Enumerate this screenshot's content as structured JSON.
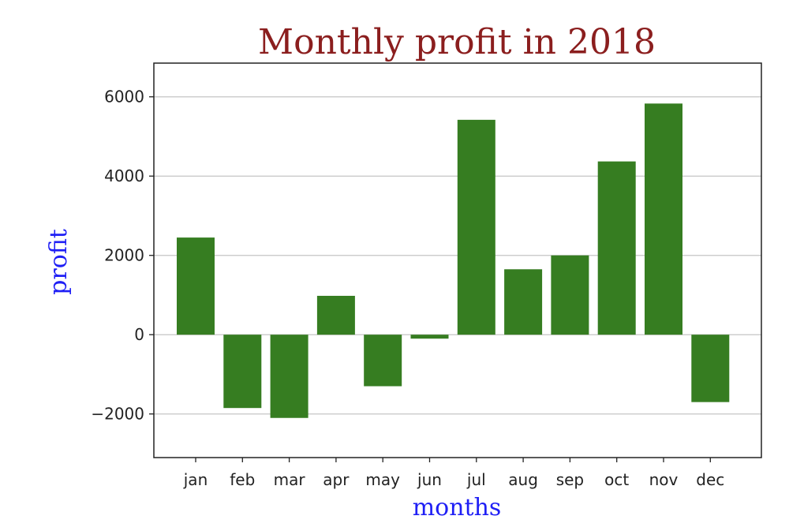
{
  "chart_data": {
    "type": "bar",
    "title": "Monthly profit in 2018",
    "xlabel": "months",
    "ylabel": "profit",
    "categories": [
      "jan",
      "feb",
      "mar",
      "apr",
      "may",
      "jun",
      "jul",
      "aug",
      "sep",
      "oct",
      "nov",
      "dec"
    ],
    "values": [
      2450,
      -1850,
      -2100,
      980,
      -1300,
      -100,
      5420,
      1650,
      2000,
      4370,
      5830,
      -1700
    ],
    "ylim": [
      -3100,
      6850
    ],
    "yticks": [
      -2000,
      0,
      2000,
      4000,
      6000
    ],
    "ytick_labels": [
      "−2000",
      "0",
      "2000",
      "4000",
      "6000"
    ],
    "grid": "horizontal",
    "colors": {
      "bar": "#367d21",
      "title": "#8b1e1e",
      "axis_label": "#1f1ff5",
      "grid": "#c4c4c4",
      "frame": "#222222"
    }
  }
}
